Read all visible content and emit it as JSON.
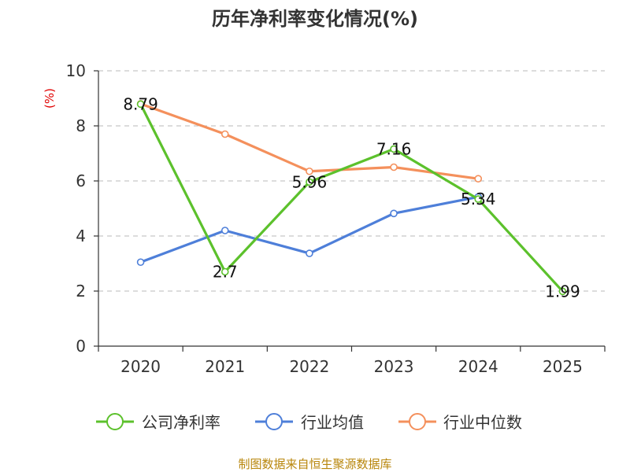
{
  "colors": {
    "company": "#5cc12c",
    "industry_avg": "#4e7fd9",
    "industry_median": "#f4905c",
    "grid": "#c8c8c8",
    "axis": "#333333",
    "ylabel": "#e00000",
    "source": "#b8860b"
  },
  "chart_data": {
    "type": "line",
    "title": "历年净利率变化情况(%)",
    "ylabel": "(%)",
    "xlabel": "",
    "categories": [
      "2020",
      "2021",
      "2022",
      "2023",
      "2024",
      "2025"
    ],
    "ylim": [
      0,
      10
    ],
    "yticks": [
      "0",
      "2",
      "4",
      "6",
      "8",
      "10"
    ],
    "grid": true,
    "legend_position": "bottom",
    "series": [
      {
        "name": "公司净利率",
        "color": "#5cc12c",
        "values": [
          8.79,
          2.7,
          5.96,
          7.16,
          5.34,
          1.99
        ],
        "labels": [
          "8.79",
          "2.7",
          "5.96",
          "7.16",
          "5.34",
          "1.99"
        ],
        "show_labels": true
      },
      {
        "name": "行业均值",
        "color": "#4e7fd9",
        "values": [
          3.05,
          4.2,
          3.37,
          4.82,
          5.42,
          null
        ],
        "show_labels": false
      },
      {
        "name": "行业中位数",
        "color": "#f4905c",
        "values": [
          8.8,
          7.7,
          6.35,
          6.5,
          6.08,
          null
        ],
        "show_labels": false
      }
    ]
  },
  "footer": {
    "source": "制图数据来自恒生聚源数据库"
  }
}
